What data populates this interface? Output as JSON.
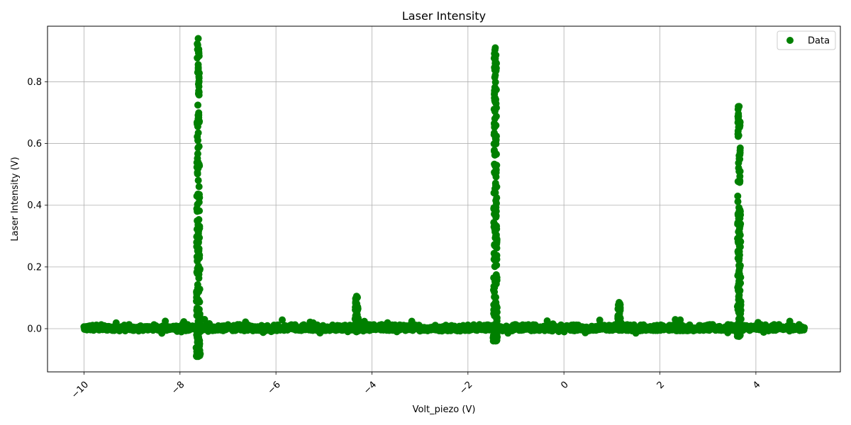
{
  "chart_data": {
    "type": "scatter",
    "title": "Laser Intensity",
    "xlabel": "Volt_piezo (V)",
    "ylabel": "Laser Intensity (V)",
    "xlim": [
      -10.76,
      5.76
    ],
    "ylim": [
      -0.14,
      0.98
    ],
    "xticks": [
      -10,
      -8,
      -6,
      -4,
      -2,
      0,
      2,
      4
    ],
    "xtick_labels": [
      "−10",
      "−8",
      "−6",
      "−4",
      "−2",
      "0",
      "2",
      "4"
    ],
    "yticks": [
      0.0,
      0.2,
      0.4,
      0.6,
      0.8
    ],
    "ytick_labels": [
      "0.0",
      "0.2",
      "0.4",
      "0.6",
      "0.8"
    ],
    "xtick_rotation_deg": 45,
    "grid": true,
    "legend_position": "top-right",
    "marker_color": "#008000",
    "series": [
      {
        "name": "Data",
        "baseline": {
          "x_range": [
            -10.0,
            5.0
          ],
          "y_min": -0.015,
          "y_max": 0.02
        },
        "peaks": [
          {
            "x": -7.62,
            "y_max": 0.94,
            "y_min": -0.09
          },
          {
            "x": -4.32,
            "y_max": 0.105,
            "y_min": -0.01
          },
          {
            "x": -1.43,
            "y_max": 0.91,
            "y_min": -0.04
          },
          {
            "x": 1.15,
            "y_max": 0.085,
            "y_min": -0.005
          },
          {
            "x": 3.65,
            "y_max": 0.72,
            "y_min": -0.025
          }
        ]
      }
    ]
  }
}
